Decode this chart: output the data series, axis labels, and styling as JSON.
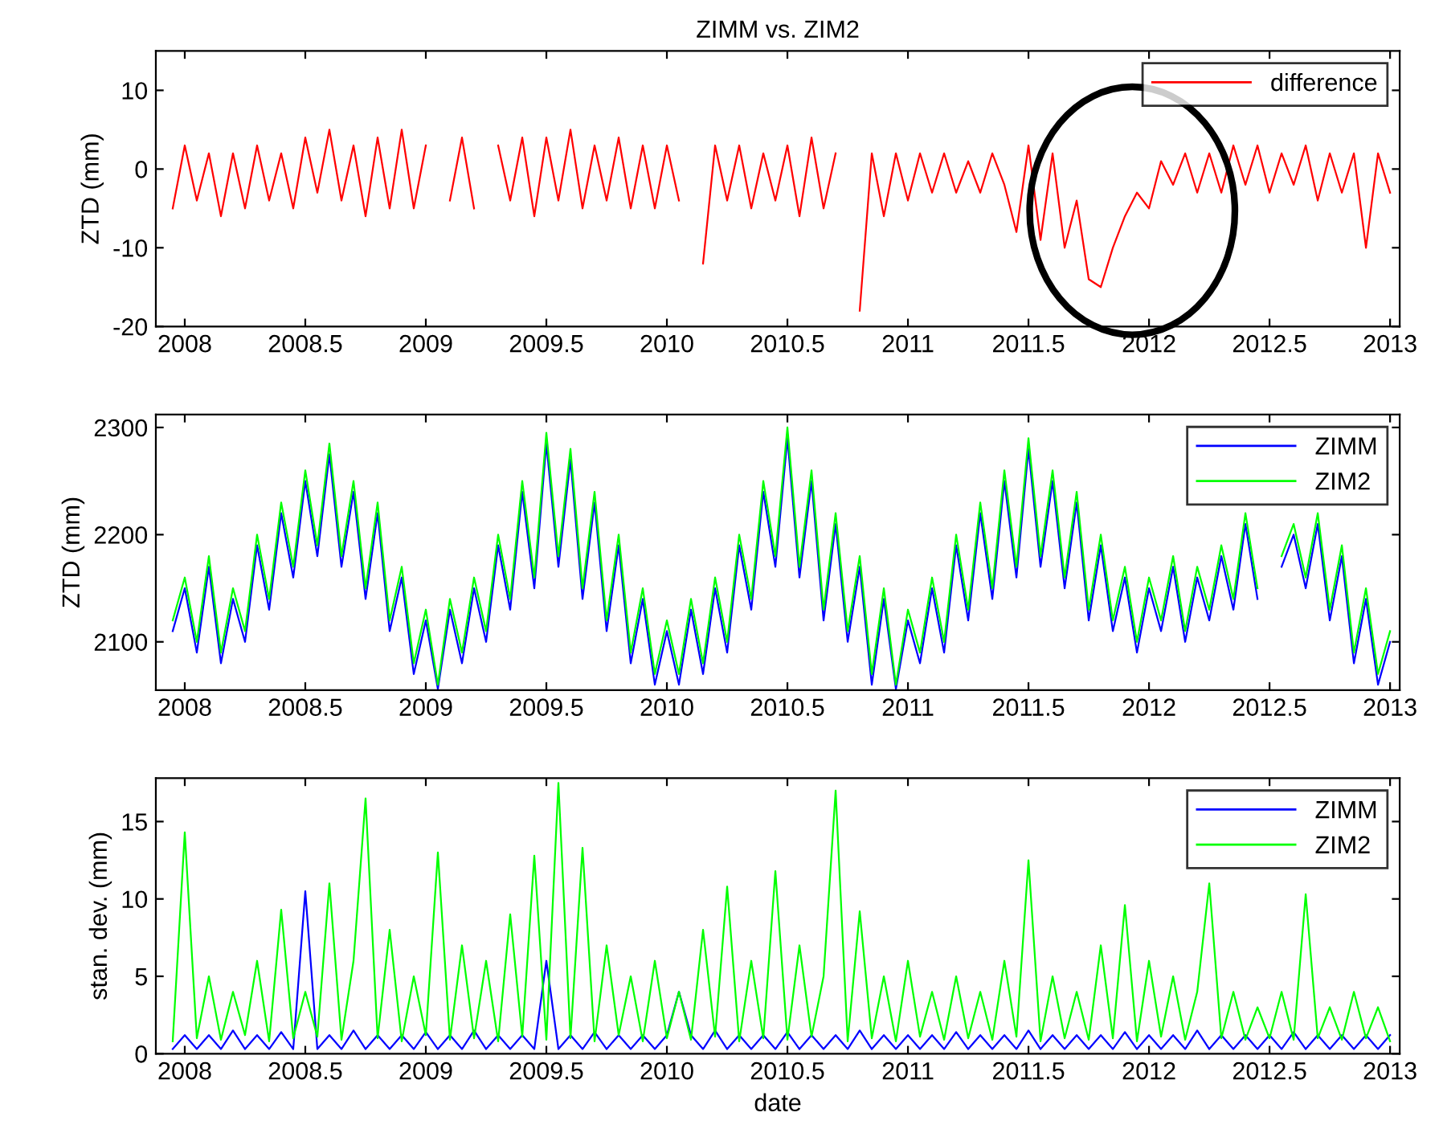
{
  "chart_data": [
    {
      "type": "line",
      "title": "ZIMM vs. ZIM2",
      "ylabel": "ZTD (mm)",
      "x": [
        2007.95,
        2008.0,
        2008.05,
        2008.1,
        2008.15,
        2008.2,
        2008.25,
        2008.3,
        2008.35,
        2008.4,
        2008.45,
        2008.5,
        2008.55,
        2008.6,
        2008.65,
        2008.7,
        2008.75,
        2008.8,
        2008.85,
        2008.9,
        2008.95,
        2009.0,
        2009.05,
        2009.1,
        2009.15,
        2009.2,
        2009.25,
        2009.3,
        2009.35,
        2009.4,
        2009.45,
        2009.5,
        2009.55,
        2009.6,
        2009.65,
        2009.7,
        2009.75,
        2009.8,
        2009.85,
        2009.9,
        2009.95,
        2010.0,
        2010.05,
        2010.1,
        2010.15,
        2010.2,
        2010.25,
        2010.3,
        2010.35,
        2010.4,
        2010.45,
        2010.5,
        2010.55,
        2010.6,
        2010.65,
        2010.7,
        2010.75,
        2010.8,
        2010.85,
        2010.9,
        2010.95,
        2011.0,
        2011.05,
        2011.1,
        2011.15,
        2011.2,
        2011.25,
        2011.3,
        2011.35,
        2011.4,
        2011.45,
        2011.5,
        2011.55,
        2011.6,
        2011.65,
        2011.7,
        2011.75,
        2011.8,
        2011.85,
        2011.9,
        2011.95,
        2012.0,
        2012.05,
        2012.1,
        2012.15,
        2012.2,
        2012.25,
        2012.3,
        2012.35,
        2012.4,
        2012.45,
        2012.5,
        2012.55,
        2012.6,
        2012.65,
        2012.7,
        2012.75,
        2012.8,
        2012.85,
        2012.9,
        2012.95,
        2013.0
      ],
      "series": [
        {
          "name": "difference",
          "color": "#ff0000",
          "values": [
            -5,
            3,
            -4,
            2,
            -6,
            2,
            -5,
            3,
            -4,
            2,
            -5,
            4,
            -3,
            5,
            -4,
            3,
            -6,
            4,
            -5,
            5,
            -5,
            3,
            null,
            -4,
            4,
            -5,
            null,
            3,
            -4,
            4,
            -6,
            4,
            -4,
            5,
            -5,
            3,
            -4,
            4,
            -5,
            3,
            -5,
            3,
            -4,
            null,
            -12,
            3,
            -4,
            3,
            -5,
            2,
            -4,
            3,
            -6,
            4,
            -5,
            2,
            null,
            -18,
            2,
            -6,
            2,
            -4,
            2,
            -3,
            2,
            -3,
            1,
            -3,
            2,
            -2,
            -8,
            3,
            -9,
            2,
            -10,
            -4,
            -14,
            -15,
            -10,
            -6,
            -3,
            -5,
            1,
            -2,
            2,
            -3,
            2,
            -3,
            3,
            -2,
            3,
            -3,
            2,
            -2,
            3,
            -4,
            2,
            -3,
            2,
            -10,
            2,
            -3
          ]
        }
      ],
      "xlim": [
        2007.88,
        2013.04
      ],
      "xticks": [
        2008,
        2008.5,
        2009,
        2009.5,
        2010,
        2010.5,
        2011,
        2011.5,
        2012,
        2012.5,
        2013
      ],
      "ylim": [
        -20,
        15
      ],
      "yticks": [
        -20,
        -10,
        0,
        10
      ],
      "grid": false,
      "legend": "top right",
      "marker": "none",
      "line_style": "solid"
    },
    {
      "type": "line",
      "ylabel": "ZTD (mm)",
      "x": [
        2007.95,
        2008.0,
        2008.05,
        2008.1,
        2008.15,
        2008.2,
        2008.25,
        2008.3,
        2008.35,
        2008.4,
        2008.45,
        2008.5,
        2008.55,
        2008.6,
        2008.65,
        2008.7,
        2008.75,
        2008.8,
        2008.85,
        2008.9,
        2008.95,
        2009.0,
        2009.05,
        2009.1,
        2009.15,
        2009.2,
        2009.25,
        2009.3,
        2009.35,
        2009.4,
        2009.45,
        2009.5,
        2009.55,
        2009.6,
        2009.65,
        2009.7,
        2009.75,
        2009.8,
        2009.85,
        2009.9,
        2009.95,
        2010.0,
        2010.05,
        2010.1,
        2010.15,
        2010.2,
        2010.25,
        2010.3,
        2010.35,
        2010.4,
        2010.45,
        2010.5,
        2010.55,
        2010.6,
        2010.65,
        2010.7,
        2010.75,
        2010.8,
        2010.85,
        2010.9,
        2010.95,
        2011.0,
        2011.05,
        2011.1,
        2011.15,
        2011.2,
        2011.25,
        2011.3,
        2011.35,
        2011.4,
        2011.45,
        2011.5,
        2011.55,
        2011.6,
        2011.65,
        2011.7,
        2011.75,
        2011.8,
        2011.85,
        2011.9,
        2011.95,
        2012.0,
        2012.05,
        2012.1,
        2012.15,
        2012.2,
        2012.25,
        2012.3,
        2012.35,
        2012.4,
        2012.45,
        2012.5,
        2012.55,
        2012.6,
        2012.65,
        2012.7,
        2012.75,
        2012.8,
        2012.85,
        2012.9,
        2012.95,
        2013.0
      ],
      "series": [
        {
          "name": "ZIMM",
          "color": "#0000ff",
          "values": [
            2110,
            2150,
            2090,
            2170,
            2080,
            2140,
            2100,
            2190,
            2130,
            2220,
            2160,
            2250,
            2180,
            2275,
            2170,
            2240,
            2140,
            2220,
            2110,
            2160,
            2070,
            2120,
            2056,
            2130,
            2080,
            2150,
            2100,
            2190,
            2130,
            2240,
            2150,
            2285,
            2170,
            2270,
            2140,
            2230,
            2110,
            2190,
            2080,
            2140,
            2060,
            2110,
            2060,
            2130,
            2070,
            2150,
            2090,
            2190,
            2130,
            2240,
            2170,
            2290,
            2160,
            2250,
            2120,
            2210,
            2100,
            2170,
            2060,
            2140,
            2056,
            2120,
            2080,
            2150,
            2090,
            2190,
            2120,
            2220,
            2140,
            2250,
            2160,
            2280,
            2170,
            2250,
            2150,
            2230,
            2120,
            2190,
            2110,
            2160,
            2090,
            2150,
            2110,
            2170,
            2100,
            2160,
            2120,
            2180,
            2130,
            2210,
            2140,
            null,
            2170,
            2200,
            2150,
            2210,
            2120,
            2180,
            2080,
            2140,
            2060,
            2100
          ]
        },
        {
          "name": "ZIM2",
          "color": "#00ff00",
          "values": [
            2120,
            2160,
            2100,
            2180,
            2090,
            2150,
            2110,
            2200,
            2140,
            2230,
            2170,
            2260,
            2190,
            2285,
            2180,
            2250,
            2150,
            2230,
            2120,
            2170,
            2080,
            2130,
            2060,
            2140,
            2090,
            2160,
            2110,
            2200,
            2140,
            2250,
            2160,
            2295,
            2180,
            2280,
            2150,
            2240,
            2120,
            2200,
            2090,
            2150,
            2070,
            2120,
            2070,
            2140,
            2080,
            2160,
            2100,
            2200,
            2140,
            2250,
            2180,
            2300,
            2170,
            2260,
            2130,
            2220,
            2110,
            2180,
            2070,
            2150,
            2060,
            2130,
            2090,
            2160,
            2100,
            2200,
            2130,
            2230,
            2150,
            2260,
            2170,
            2290,
            2180,
            2260,
            2160,
            2240,
            2130,
            2200,
            2120,
            2170,
            2100,
            2160,
            2120,
            2180,
            2110,
            2170,
            2130,
            2190,
            2140,
            2220,
            2150,
            null,
            2180,
            2210,
            2160,
            2220,
            2130,
            2190,
            2090,
            2150,
            2070,
            2110
          ]
        }
      ],
      "xlim": [
        2007.88,
        2013.04
      ],
      "xticks": [
        2008,
        2008.5,
        2009,
        2009.5,
        2010,
        2010.5,
        2011,
        2011.5,
        2012,
        2012.5,
        2013
      ],
      "ylim": [
        2055,
        2312
      ],
      "yticks": [
        2100,
        2200,
        2300
      ],
      "grid": false,
      "legend": "top right",
      "marker": "none",
      "line_style": "solid"
    },
    {
      "type": "line",
      "ylabel": "stan. dev. (mm)",
      "xlabel": "date",
      "x": [
        2007.95,
        2008.0,
        2008.05,
        2008.1,
        2008.15,
        2008.2,
        2008.25,
        2008.3,
        2008.35,
        2008.4,
        2008.45,
        2008.5,
        2008.55,
        2008.6,
        2008.65,
        2008.7,
        2008.75,
        2008.8,
        2008.85,
        2008.9,
        2008.95,
        2009.0,
        2009.05,
        2009.1,
        2009.15,
        2009.2,
        2009.25,
        2009.3,
        2009.35,
        2009.4,
        2009.45,
        2009.5,
        2009.55,
        2009.6,
        2009.65,
        2009.7,
        2009.75,
        2009.8,
        2009.85,
        2009.9,
        2009.95,
        2010.0,
        2010.05,
        2010.1,
        2010.15,
        2010.2,
        2010.25,
        2010.3,
        2010.35,
        2010.4,
        2010.45,
        2010.5,
        2010.55,
        2010.6,
        2010.65,
        2010.7,
        2010.75,
        2010.8,
        2010.85,
        2010.9,
        2010.95,
        2011.0,
        2011.05,
        2011.1,
        2011.15,
        2011.2,
        2011.25,
        2011.3,
        2011.35,
        2011.4,
        2011.45,
        2011.5,
        2011.55,
        2011.6,
        2011.65,
        2011.7,
        2011.75,
        2011.8,
        2011.85,
        2011.9,
        2011.95,
        2012.0,
        2012.05,
        2012.1,
        2012.15,
        2012.2,
        2012.25,
        2012.3,
        2012.35,
        2012.4,
        2012.45,
        2012.5,
        2012.55,
        2012.6,
        2012.65,
        2012.7,
        2012.75,
        2012.8,
        2012.85,
        2012.9,
        2012.95,
        2013.0
      ],
      "series": [
        {
          "name": "ZIMM",
          "color": "#0000ff",
          "values": [
            0.3,
            1.2,
            0.3,
            1.2,
            0.3,
            1.5,
            0.3,
            1.2,
            0.3,
            1.4,
            0.3,
            10.5,
            0.3,
            1.2,
            0.3,
            1.5,
            0.3,
            1.2,
            0.3,
            1.2,
            0.3,
            1.4,
            0.3,
            1.2,
            0.3,
            1.5,
            0.3,
            1.2,
            0.3,
            1.2,
            0.3,
            6,
            0.3,
            1.2,
            0.3,
            1.4,
            0.3,
            1.2,
            0.3,
            1.2,
            0.3,
            1.2,
            4,
            1.2,
            0.3,
            1.5,
            0.3,
            1.2,
            0.3,
            1.2,
            0.3,
            1.4,
            0.3,
            1.2,
            0.3,
            1.2,
            0.3,
            1.5,
            0.3,
            1.2,
            0.3,
            1.2,
            0.3,
            1.2,
            0.3,
            1.4,
            0.3,
            1.2,
            0.3,
            1.2,
            0.3,
            1.5,
            0.3,
            1.2,
            0.3,
            1.2,
            0.3,
            1.2,
            0.3,
            1.4,
            0.3,
            1.2,
            0.3,
            1.2,
            0.3,
            1.5,
            0.3,
            1.2,
            0.3,
            1.2,
            0.3,
            1.2,
            0.3,
            1.4,
            0.3,
            1.2,
            0.3,
            1.2,
            0.3,
            1.2,
            0.3,
            1.2
          ]
        },
        {
          "name": "ZIM2",
          "color": "#00ff00",
          "values": [
            0.8,
            14.3,
            1.0,
            5,
            0.9,
            4,
            1.2,
            6,
            0.8,
            9.3,
            1.0,
            4,
            1.1,
            11,
            0.9,
            6,
            16.5,
            1.0,
            8,
            0.8,
            5,
            1.2,
            13,
            0.9,
            7,
            1.0,
            6,
            0.8,
            9,
            1.1,
            12.8,
            0.9,
            17.5,
            1.0,
            13.3,
            0.8,
            7,
            1.2,
            5,
            0.8,
            6,
            1.0,
            4,
            0.9,
            8,
            1.1,
            10.8,
            0.8,
            6,
            1.0,
            11.8,
            0.9,
            7,
            1.1,
            5,
            17,
            0.8,
            9.2,
            1.0,
            5,
            0.8,
            6,
            1.1,
            4,
            0.9,
            5,
            1.0,
            4,
            0.9,
            6,
            1.1,
            12.5,
            0.8,
            5,
            1.0,
            4,
            0.9,
            7,
            1.0,
            9.6,
            0.8,
            6,
            1.1,
            5,
            0.9,
            4,
            11,
            1.0,
            4,
            0.9,
            3,
            1.0,
            4,
            0.9,
            10.3,
            1.0,
            3,
            0.9,
            4,
            1.0,
            3,
            0.8
          ]
        }
      ],
      "xlim": [
        2007.88,
        2013.04
      ],
      "xticks": [
        2008,
        2008.5,
        2009,
        2009.5,
        2010,
        2010.5,
        2011,
        2011.5,
        2012,
        2012.5,
        2013
      ],
      "ylim": [
        0,
        17.8
      ],
      "yticks": [
        0,
        5,
        10,
        15
      ],
      "grid": false,
      "legend": "top right",
      "marker": "none",
      "line_style": "solid"
    }
  ]
}
